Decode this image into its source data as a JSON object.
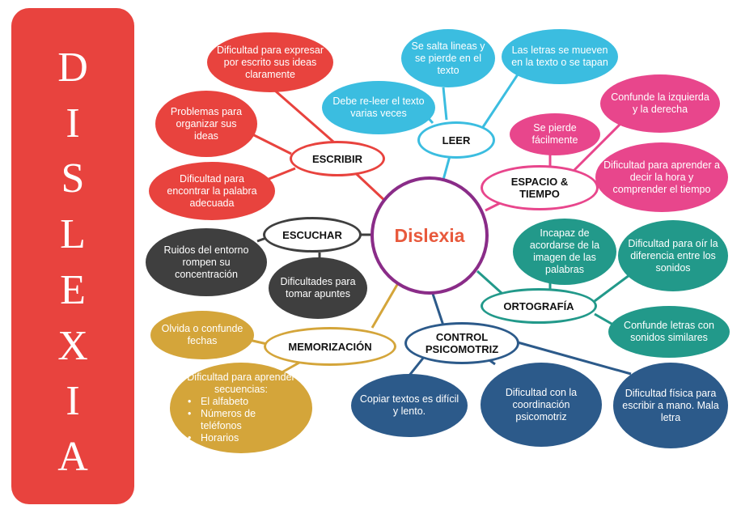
{
  "banner": {
    "letters": [
      "D",
      "I",
      "S",
      "L",
      "E",
      "X",
      "I",
      "A"
    ],
    "color": "#e8433e"
  },
  "center": {
    "label": "Dislexia",
    "text_color": "#e8593c",
    "ring_color": "#8a2c88"
  },
  "categories": {
    "escribir": {
      "label": "ESCRIBIR",
      "color": "#e8433e"
    },
    "leer": {
      "label": "LEER",
      "color": "#3bbde0"
    },
    "espacio": {
      "label": "ESPACIO &\nTIEMPO",
      "color": "#e8468c"
    },
    "escuchar": {
      "label": "ESCUCHAR",
      "color": "#3f3f3f"
    },
    "ortografia": {
      "label": "ORTOGRAFÍA",
      "color": "#22998a"
    },
    "memorizacion": {
      "label": "MEMORIZACIÓN",
      "color": "#d4a53a"
    },
    "control": {
      "label": "CONTROL\nPSICOMOTRIZ",
      "color": "#2c5a8a"
    }
  },
  "items": {
    "escribir_1": "Dificultad para expresar  por escrito sus ideas claramente",
    "escribir_2": "Problemas para organizar sus ideas",
    "escribir_3": "Dificultad para encontrar la palabra adecuada",
    "leer_1": "Debe re-leer el texto varias veces",
    "leer_2": "Se salta lineas  y se pierde en el texto",
    "leer_3": "Las letras se mueven en la texto o se tapan",
    "espacio_1": "Confunde la izquierda y la derecha",
    "espacio_2": "Se pierde fácilmente",
    "espacio_3": "Dificultad para aprender a decir la hora y comprender  el tiempo",
    "escuchar_1": "Ruidos del entorno rompen su concentración",
    "escuchar_2": "Dificultades para tomar apuntes",
    "ortografia_1": "Incapaz de acordarse de la imagen de las palabras",
    "ortografia_2": "Dificultad para oír la diferencia entre los sonidos",
    "ortografia_3": "Confunde letras con  sonidos similares",
    "memorizacion_1": "Olvida o confunde fechas",
    "memorizacion_2_title": "Dificultad para aprender secuencias:",
    "memorizacion_2_list": [
      "El alfabeto",
      "Números de teléfonos",
      "Horarios"
    ],
    "control_1": "Copiar textos es difícil y lento.",
    "control_2": "Dificultad con la coordinación psicomotriz",
    "control_3": "Dificultad física para escribir a mano. Mala letra"
  }
}
